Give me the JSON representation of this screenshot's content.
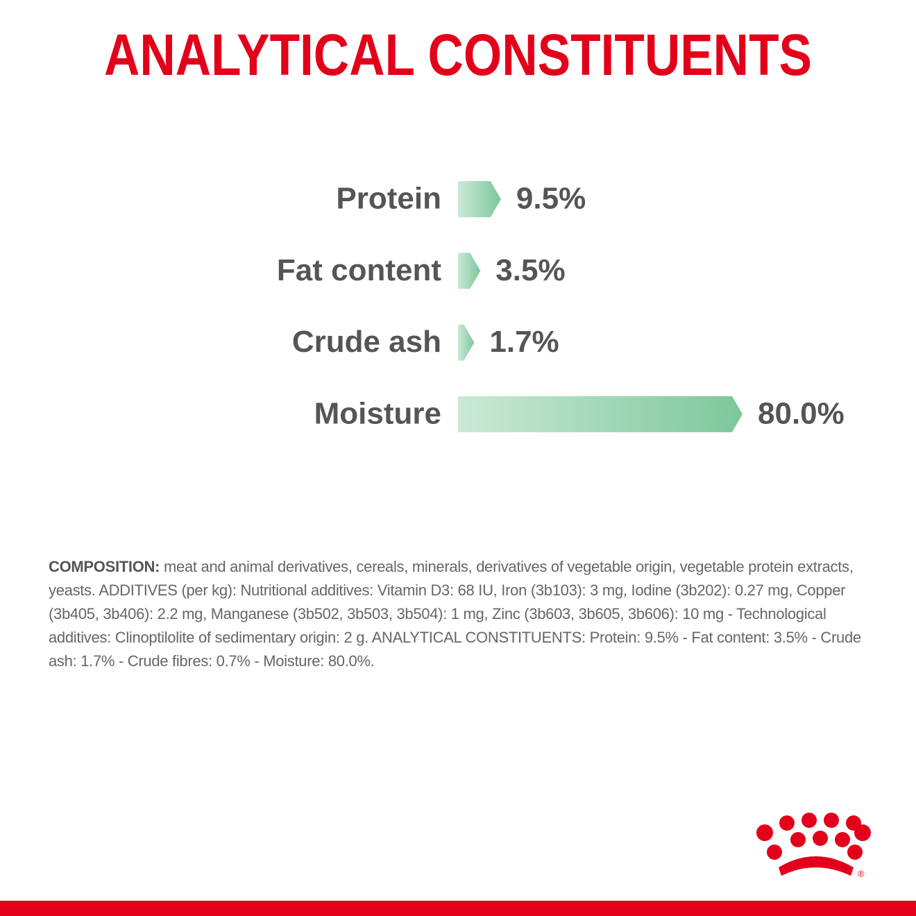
{
  "chart_data": {
    "type": "hbar",
    "title": "ANALYTICAL CONSTITUENTS",
    "categories": [
      "Protein",
      "Fat content",
      "Crude ash",
      "Moisture"
    ],
    "values": [
      9.5,
      3.5,
      1.7,
      80.0
    ],
    "value_labels": [
      "9.5%",
      "3.5%",
      "1.7%",
      "80.0%"
    ],
    "color": [
      "#cbe9d7",
      "#7dc79c"
    ]
  },
  "composition": {
    "heading": "COMPOSITION:",
    "text": "meat and animal derivatives, cereals, minerals, derivatives of vegetable origin, vegetable protein extracts, yeasts. ADDITIVES (per kg): Nutritional additives: Vitamin D3: 68 IU, Iron (3b103): 3 mg, Iodine (3b202): 0.27 mg, Copper (3b405, 3b406): 2.2 mg, Manganese (3b502, 3b503, 3b504): 1 mg, Zinc (3b603, 3b605, 3b606): 10 mg - Technological additives: Clinoptilolite of sedimentary origin: 2 g. ANALYTICAL CONSTITUENTS: Protein: 9.5% - Fat content: 3.5% - Crude ash: 1.7% - Crude fibres: 0.7% - Moisture: 80.0%."
  },
  "logo": {
    "mark": "®"
  }
}
